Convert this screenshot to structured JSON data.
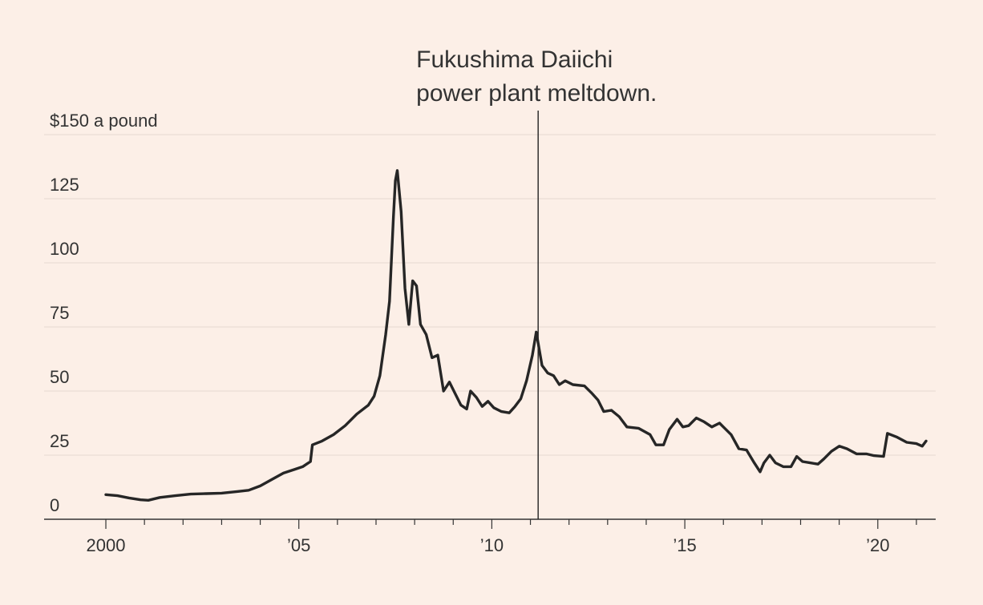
{
  "chart_data": {
    "type": "line",
    "title": "",
    "y_unit_label": "$150 a pound",
    "ylim": [
      0,
      150
    ],
    "y_ticks": [
      {
        "value": 0,
        "label": "0"
      },
      {
        "value": 25,
        "label": "25"
      },
      {
        "value": 50,
        "label": "50"
      },
      {
        "value": 75,
        "label": "75"
      },
      {
        "value": 100,
        "label": "100"
      },
      {
        "value": 125,
        "label": "125"
      },
      {
        "value": 150,
        "label": "$150 a pound"
      }
    ],
    "xlim": [
      1998.4,
      2021.5
    ],
    "x_ticks": [
      {
        "value": 2000,
        "label": "2000"
      },
      {
        "value": 2005,
        "label": "’05"
      },
      {
        "value": 2010,
        "label": "’10"
      },
      {
        "value": 2015,
        "label": "’15"
      },
      {
        "value": 2020,
        "label": "’20"
      }
    ],
    "x_minor_ticks": [
      2001,
      2002,
      2003,
      2004,
      2006,
      2007,
      2008,
      2009,
      2011,
      2012,
      2013,
      2014,
      2016,
      2017,
      2018,
      2019,
      2021
    ],
    "grid": true,
    "annotation": {
      "x": 2011.2,
      "lines": [
        "Fukushima Daiichi",
        "power plant meltdown."
      ]
    },
    "series": [
      {
        "points": [
          [
            2000.0,
            9.6
          ],
          [
            2000.3,
            9.2
          ],
          [
            2000.6,
            8.3
          ],
          [
            2000.9,
            7.6
          ],
          [
            2001.1,
            7.4
          ],
          [
            2001.4,
            8.5
          ],
          [
            2001.8,
            9.2
          ],
          [
            2002.2,
            9.8
          ],
          [
            2002.6,
            10.0
          ],
          [
            2003.0,
            10.2
          ],
          [
            2003.4,
            10.8
          ],
          [
            2003.7,
            11.3
          ],
          [
            2004.0,
            13.0
          ],
          [
            2004.3,
            15.5
          ],
          [
            2004.6,
            18.0
          ],
          [
            2004.9,
            19.5
          ],
          [
            2005.1,
            20.5
          ],
          [
            2005.3,
            22.5
          ],
          [
            2005.35,
            29.0
          ],
          [
            2005.6,
            30.5
          ],
          [
            2005.9,
            33.0
          ],
          [
            2006.2,
            36.5
          ],
          [
            2006.5,
            41.0
          ],
          [
            2006.8,
            44.5
          ],
          [
            2006.95,
            48.0
          ],
          [
            2007.1,
            56.0
          ],
          [
            2007.25,
            72.0
          ],
          [
            2007.35,
            85.0
          ],
          [
            2007.45,
            118.0
          ],
          [
            2007.5,
            132.0
          ],
          [
            2007.55,
            136.0
          ],
          [
            2007.65,
            120.0
          ],
          [
            2007.75,
            90.0
          ],
          [
            2007.85,
            76.0
          ],
          [
            2007.95,
            93.0
          ],
          [
            2008.05,
            91.0
          ],
          [
            2008.15,
            76.0
          ],
          [
            2008.3,
            72.0
          ],
          [
            2008.45,
            63.0
          ],
          [
            2008.6,
            64.0
          ],
          [
            2008.75,
            50.0
          ],
          [
            2008.9,
            53.5
          ],
          [
            2009.05,
            49.0
          ],
          [
            2009.2,
            44.5
          ],
          [
            2009.35,
            43.0
          ],
          [
            2009.45,
            50.0
          ],
          [
            2009.6,
            47.5
          ],
          [
            2009.75,
            44.0
          ],
          [
            2009.9,
            46.0
          ],
          [
            2010.05,
            43.5
          ],
          [
            2010.25,
            42.0
          ],
          [
            2010.45,
            41.5
          ],
          [
            2010.6,
            44.0
          ],
          [
            2010.75,
            47.0
          ],
          [
            2010.9,
            54.0
          ],
          [
            2011.05,
            64.0
          ],
          [
            2011.15,
            73.0
          ],
          [
            2011.3,
            60.0
          ],
          [
            2011.45,
            57.0
          ],
          [
            2011.6,
            56.0
          ],
          [
            2011.75,
            52.5
          ],
          [
            2011.9,
            54.0
          ],
          [
            2012.1,
            52.5
          ],
          [
            2012.4,
            52.0
          ],
          [
            2012.6,
            49.0
          ],
          [
            2012.75,
            46.5
          ],
          [
            2012.9,
            42.0
          ],
          [
            2013.1,
            42.5
          ],
          [
            2013.3,
            40.0
          ],
          [
            2013.5,
            36.0
          ],
          [
            2013.8,
            35.5
          ],
          [
            2014.1,
            33.0
          ],
          [
            2014.25,
            29.0
          ],
          [
            2014.45,
            29.0
          ],
          [
            2014.6,
            35.0
          ],
          [
            2014.8,
            39.0
          ],
          [
            2014.95,
            36.0
          ],
          [
            2015.1,
            36.5
          ],
          [
            2015.3,
            39.5
          ],
          [
            2015.5,
            38.0
          ],
          [
            2015.7,
            36.0
          ],
          [
            2015.9,
            37.5
          ],
          [
            2016.0,
            36.0
          ],
          [
            2016.2,
            33.0
          ],
          [
            2016.4,
            27.5
          ],
          [
            2016.6,
            27.0
          ],
          [
            2016.8,
            22.0
          ],
          [
            2016.95,
            18.5
          ],
          [
            2017.05,
            22.0
          ],
          [
            2017.2,
            25.0
          ],
          [
            2017.35,
            22.0
          ],
          [
            2017.55,
            20.5
          ],
          [
            2017.75,
            20.5
          ],
          [
            2017.9,
            24.5
          ],
          [
            2018.05,
            22.5
          ],
          [
            2018.25,
            22.0
          ],
          [
            2018.45,
            21.5
          ],
          [
            2018.6,
            23.5
          ],
          [
            2018.8,
            26.5
          ],
          [
            2019.0,
            28.5
          ],
          [
            2019.2,
            27.5
          ],
          [
            2019.45,
            25.5
          ],
          [
            2019.7,
            25.5
          ],
          [
            2019.9,
            24.8
          ],
          [
            2020.15,
            24.5
          ],
          [
            2020.25,
            33.5
          ],
          [
            2020.5,
            32.0
          ],
          [
            2020.75,
            30.0
          ],
          [
            2021.0,
            29.5
          ],
          [
            2021.15,
            28.5
          ],
          [
            2021.25,
            30.5
          ]
        ]
      }
    ]
  }
}
